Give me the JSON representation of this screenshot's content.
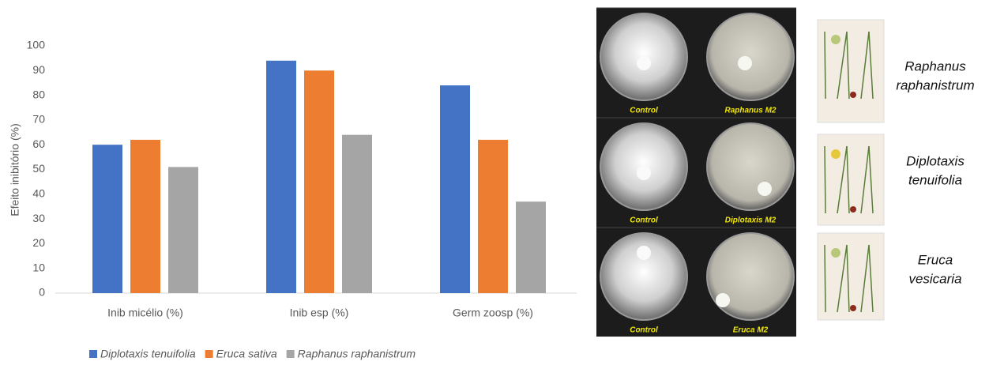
{
  "chart_data": {
    "type": "bar",
    "y_label": "Efeito inibitório (%)",
    "categories": [
      "Inib micélio (%)",
      "Inib esp (%)",
      "Germ zoosp (%)"
    ],
    "series": [
      {
        "name": "Diplotaxis tenuifolia",
        "color": "#4472c4",
        "values": [
          60,
          94,
          84
        ]
      },
      {
        "name": "Eruca sativa",
        "color": "#ed7d31",
        "values": [
          62,
          90,
          62
        ]
      },
      {
        "name": "Raphanus raphanistrum",
        "color": "#a5a5a5",
        "values": [
          51,
          64,
          37
        ]
      }
    ],
    "ylim": [
      0,
      100
    ],
    "yticks": [
      0,
      10,
      20,
      30,
      40,
      50,
      60,
      70,
      80,
      90,
      100
    ],
    "grid": false,
    "legend": "bottom"
  },
  "panel": {
    "rows": [
      {
        "left": "Control",
        "right": "Raphanus M2",
        "species": [
          "Raphanus",
          "raphanistrum"
        ]
      },
      {
        "left": "Control",
        "right": "Diplotaxis M2",
        "species": [
          "Diplotaxis",
          "tenuifolia"
        ]
      },
      {
        "left": "Control",
        "right": "Eruca M2",
        "species": [
          "Eruca",
          "vesicaria"
        ]
      }
    ]
  }
}
